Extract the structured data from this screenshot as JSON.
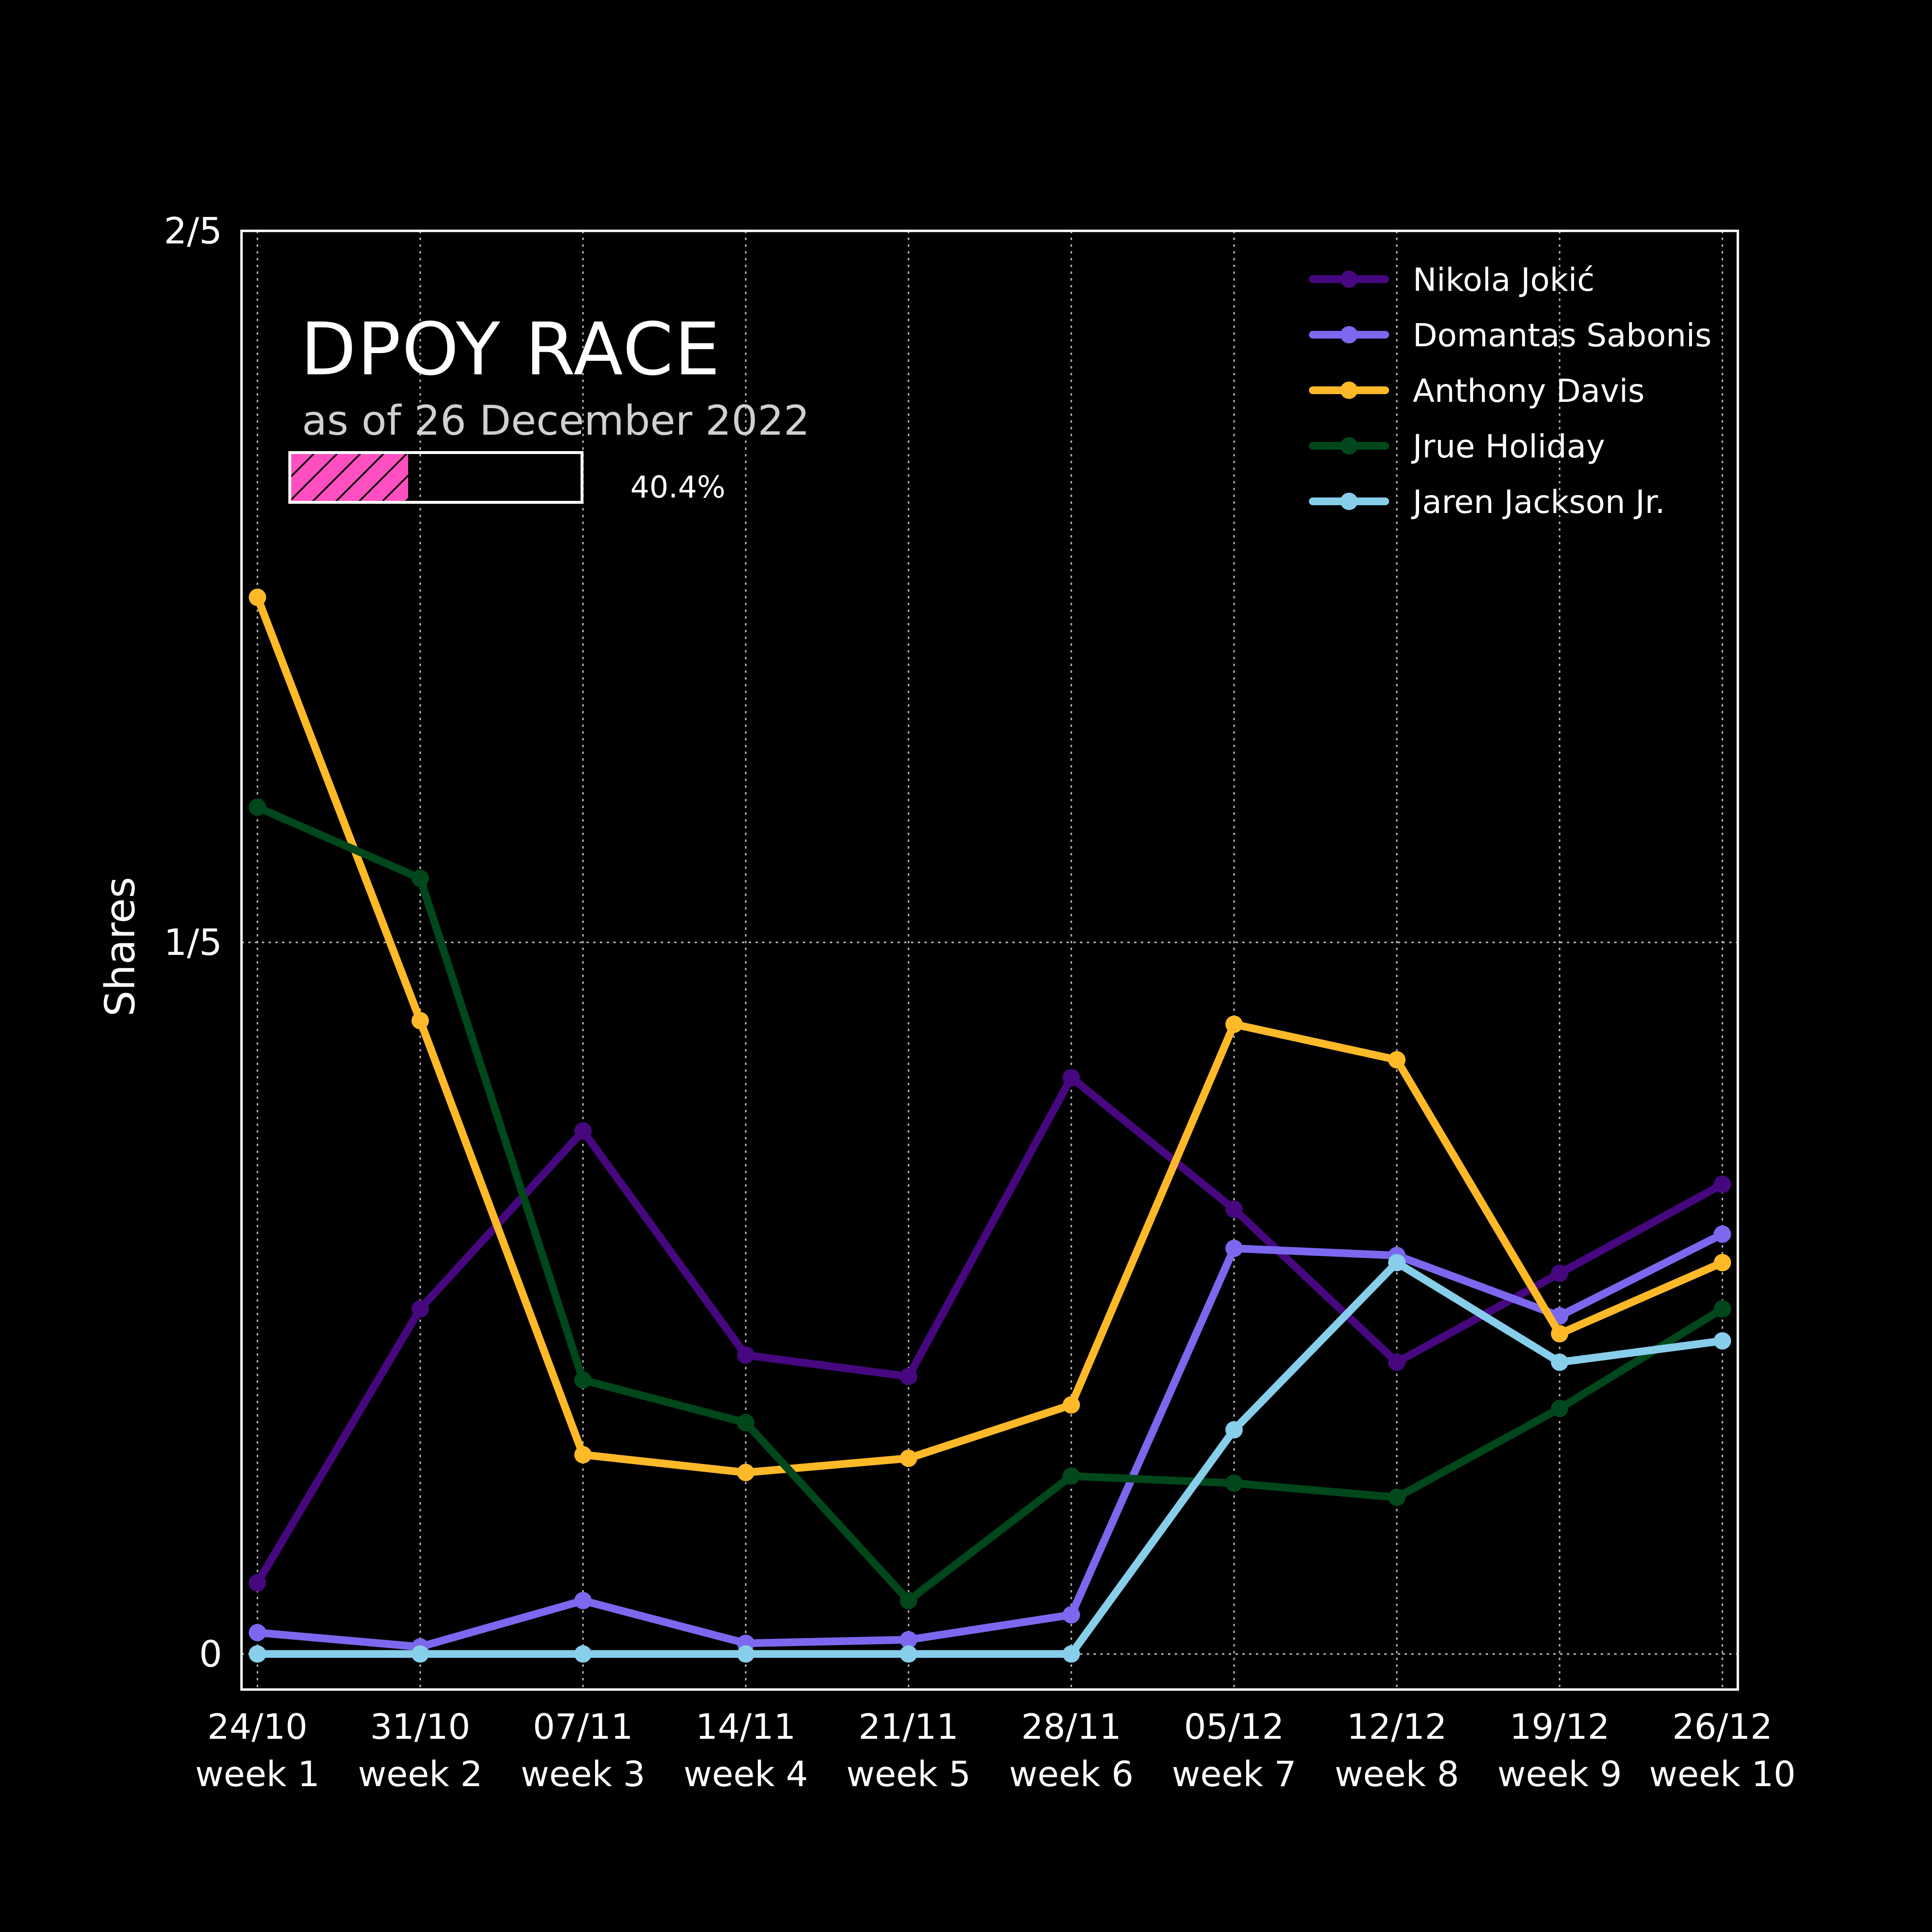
{
  "chart_data": {
    "type": "line",
    "title": "DPOY RACE",
    "subtitle": "as of 26 December 2022",
    "progress": {
      "fraction": 0.404,
      "label": "40.4%",
      "color": "#ff4fc0"
    },
    "ylabel": "Shares",
    "ylim": [
      -0.01,
      0.4
    ],
    "yticks": [
      0,
      0.2,
      0.4
    ],
    "ytick_labels": [
      "0",
      "1/5",
      "2/5"
    ],
    "categories": [
      "24/10\nweek 1",
      "31/10\nweek 2",
      "07/11\nweek 3",
      "14/11\nweek 4",
      "21/11\nweek 5",
      "28/11\nweek 6",
      "05/12\nweek 7",
      "12/12\nweek 8",
      "19/12\nweek 9",
      "26/12\nweek 10"
    ],
    "grid": true,
    "legend_position": "top-right",
    "series": [
      {
        "name": "Nikola Jokić",
        "color": "#46077f",
        "values": [
          0.02,
          0.097,
          0.147,
          0.084,
          0.078,
          0.162,
          0.125,
          0.082,
          0.107,
          0.132
        ]
      },
      {
        "name": "Domantas Sabonis",
        "color": "#7b68ee",
        "values": [
          0.006,
          0.002,
          0.015,
          0.003,
          0.004,
          0.011,
          0.114,
          0.112,
          0.095,
          0.118
        ]
      },
      {
        "name": "Anthony Davis",
        "color": "#fdb927",
        "values": [
          0.297,
          0.178,
          0.056,
          0.051,
          0.055,
          0.07,
          0.177,
          0.167,
          0.09,
          0.11
        ]
      },
      {
        "name": "Jrue Holiday",
        "color": "#00471b",
        "values": [
          0.238,
          0.218,
          0.077,
          0.065,
          0.015,
          0.05,
          0.048,
          0.044,
          0.069,
          0.097
        ]
      },
      {
        "name": "Jaren Jackson Jr.",
        "color": "#87ceeb",
        "values": [
          0,
          0,
          0,
          0,
          0,
          0,
          0.063,
          0.11,
          0.082,
          0.088
        ]
      }
    ]
  }
}
